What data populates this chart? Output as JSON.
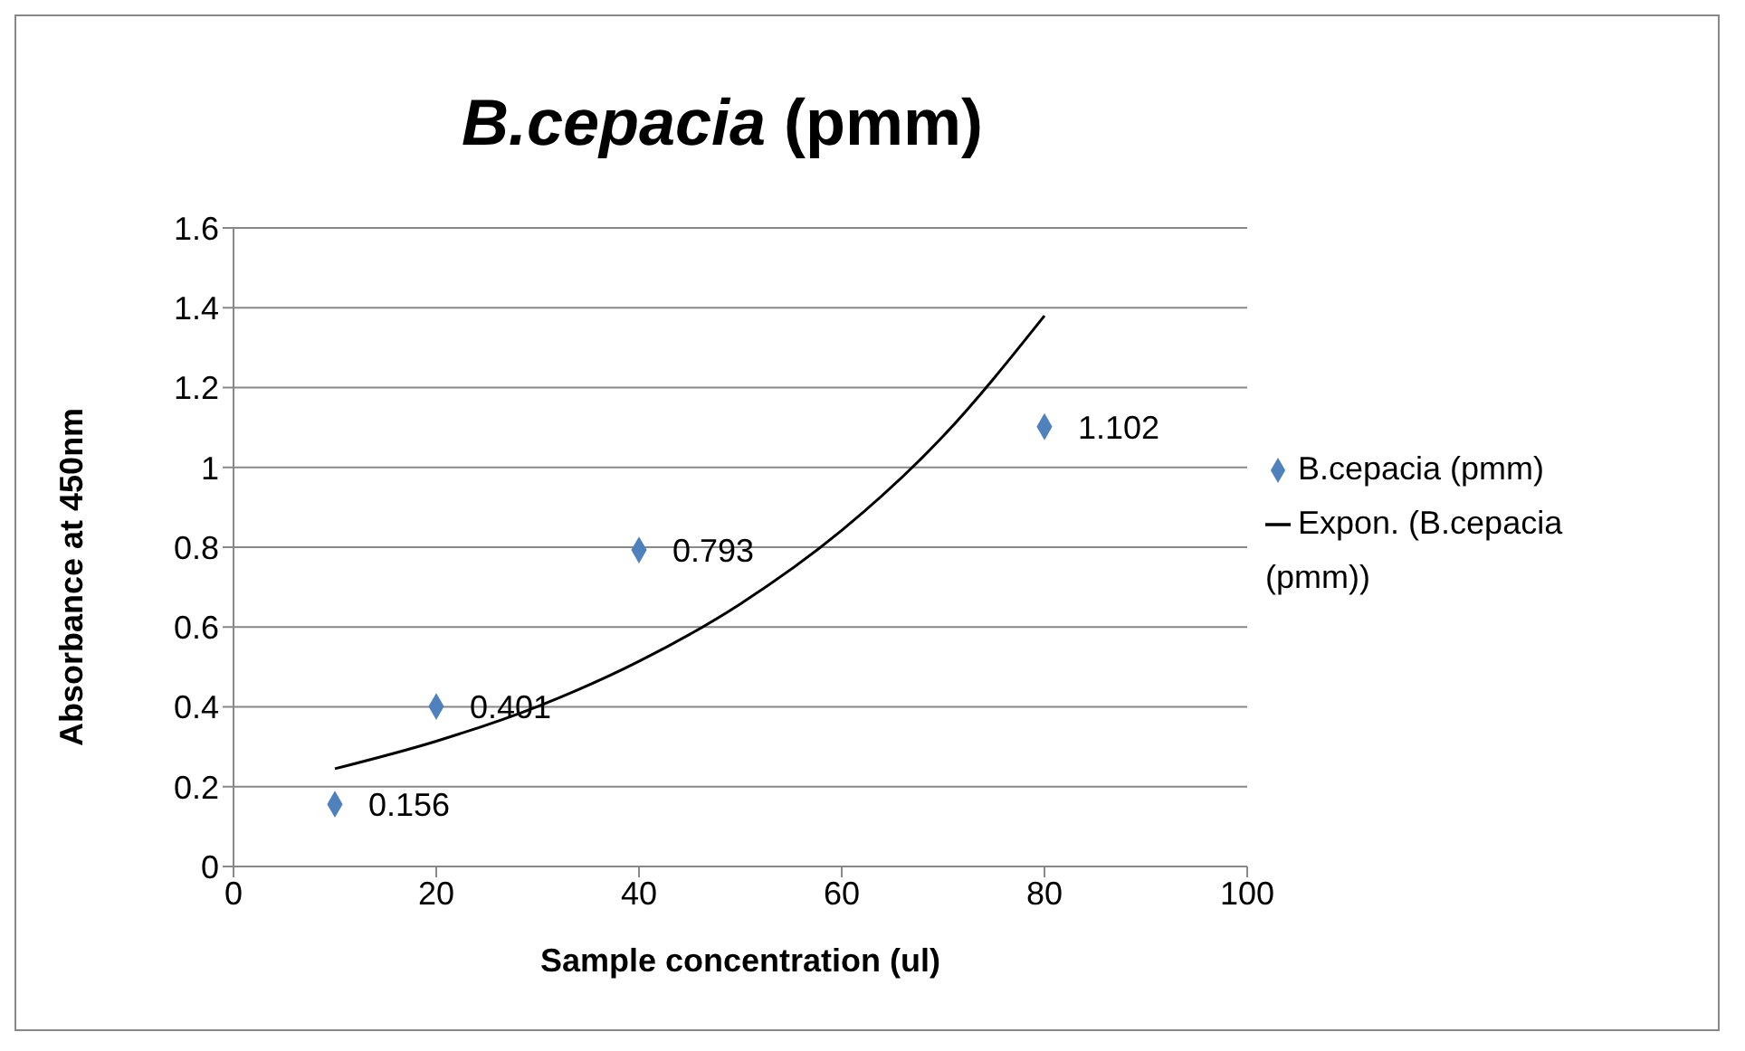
{
  "chart_data": {
    "type": "scatter",
    "title": "B.cepacia (pmm)",
    "xlabel": "Sample concentration (ul)",
    "ylabel": "Absorbance at 450nm",
    "xlim": [
      0,
      100
    ],
    "xticks": [
      0,
      20,
      40,
      60,
      80,
      100
    ],
    "ylim": [
      0,
      1.6
    ],
    "yticks": [
      0,
      0.2,
      0.4,
      0.6,
      0.8,
      1,
      1.2,
      1.4,
      1.6
    ],
    "grid": "y",
    "legend": "right",
    "marker": "diamond",
    "series": [
      {
        "name": "B.cepacia (pmm)",
        "color": "#4f81bd",
        "x": [
          10,
          20,
          40,
          80
        ],
        "values": [
          0.156,
          0.401,
          0.793,
          1.102
        ],
        "value_labels": [
          "0.156",
          "0.401",
          "0.793",
          "1.102"
        ]
      },
      {
        "name": "Expon. (B.cepacia (pmm))",
        "type": "line",
        "color": "#000000",
        "line_style": "solid",
        "marker": "none",
        "x": [
          10,
          20,
          30,
          40,
          50,
          60,
          70,
          80
        ],
        "values": [
          0.245,
          0.314,
          0.401,
          0.514,
          0.658,
          0.842,
          1.078,
          1.38
        ]
      }
    ]
  }
}
